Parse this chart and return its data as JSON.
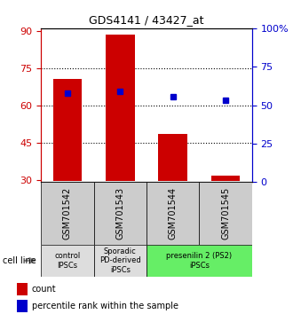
{
  "title": "GDS4141 / 43427_at",
  "categories": [
    "GSM701542",
    "GSM701543",
    "GSM701544",
    "GSM701545"
  ],
  "bar_values": [
    70.5,
    88.5,
    48.5,
    31.5
  ],
  "bar_bottom": 29.5,
  "bar_color": "#cc0000",
  "marker_values": [
    65.0,
    65.5,
    63.5,
    62.0
  ],
  "marker_color": "#0000cc",
  "ylim_left": [
    29,
    91
  ],
  "ylim_right": [
    0,
    100
  ],
  "yticks_left": [
    30,
    45,
    60,
    75,
    90
  ],
  "yticks_right": [
    0,
    25,
    50,
    75,
    100
  ],
  "ytick_labels_right": [
    "0",
    "25",
    "50",
    "75",
    "100%"
  ],
  "hlines": [
    75,
    60,
    45
  ],
  "cell_line_labels": [
    "control\nIPSCs",
    "Sporadic\nPD-derived\niPSCs",
    "presenilin 2 (PS2)\niPSCs"
  ],
  "cell_line_spans": [
    [
      0,
      1
    ],
    [
      1,
      2
    ],
    [
      2,
      4
    ]
  ],
  "cell_line_bg_colors": [
    "#dddddd",
    "#dddddd",
    "#66ee66"
  ],
  "gsm_box_color": "#cccccc",
  "group_label": "cell line",
  "legend_count_color": "#cc0000",
  "legend_percentile_color": "#0000cc",
  "left_axis_color": "#cc0000",
  "right_axis_color": "#0000cc"
}
